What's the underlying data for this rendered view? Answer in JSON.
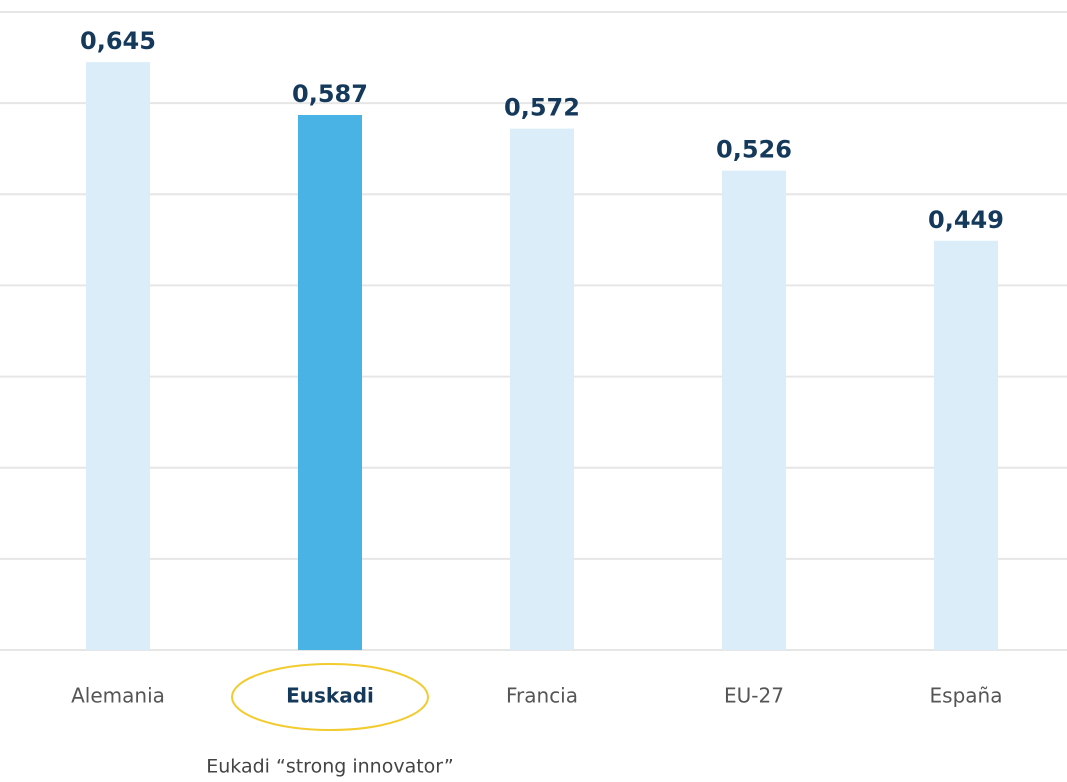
{
  "chart_data": {
    "type": "bar",
    "categories": [
      "Alemania",
      "Euskadi",
      "Francia",
      "EU-27",
      "España"
    ],
    "values": [
      0.645,
      0.587,
      0.572,
      0.526,
      0.449
    ],
    "value_labels": [
      "0,645",
      "0,587",
      "0,572",
      "0,526",
      "0,449"
    ],
    "colors": [
      "#dbedf9",
      "#4ab3e6",
      "#dbedf9",
      "#dbedf9",
      "#dbedf9"
    ],
    "highlight_index": 1,
    "annotation": "Eukadi “strong innovator”",
    "ylim": [
      0,
      0.7
    ],
    "yticks": [
      0,
      0.1,
      0.2,
      0.3,
      0.4,
      0.5,
      0.6,
      0.7
    ],
    "grid": true
  }
}
